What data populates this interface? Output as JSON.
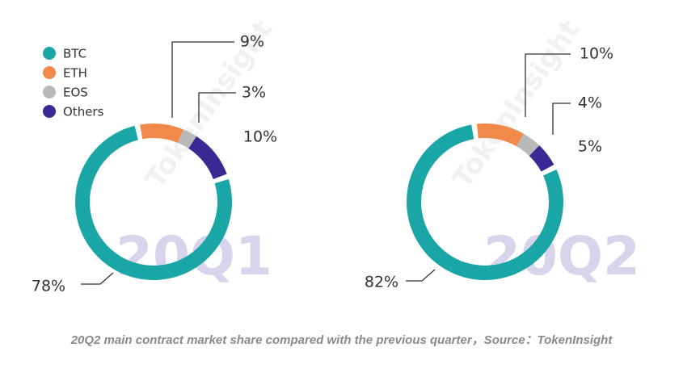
{
  "chart_data": [
    {
      "type": "pie",
      "title": "20Q1",
      "categories": [
        "BTC",
        "ETH",
        "EOS",
        "Others"
      ],
      "values": [
        78,
        9,
        3,
        10
      ],
      "value_labels": [
        "78%",
        "9%",
        "3%",
        "10%"
      ],
      "colors": [
        "#1aa6a6",
        "#f0894a",
        "#b9b9b9",
        "#3a2995"
      ]
    },
    {
      "type": "pie",
      "title": "20Q2",
      "values": [
        82,
        10,
        4,
        5
      ],
      "value_labels": [
        "82%",
        "10%",
        "4%",
        "5%"
      ],
      "colors": [
        "#1aa6a6",
        "#f0894a",
        "#b9b9b9",
        "#3a2995"
      ]
    }
  ],
  "watermark": "TokenInsight",
  "caption": "20Q2 main contract market share compared with the previous quarter，Source：TokenInsight"
}
